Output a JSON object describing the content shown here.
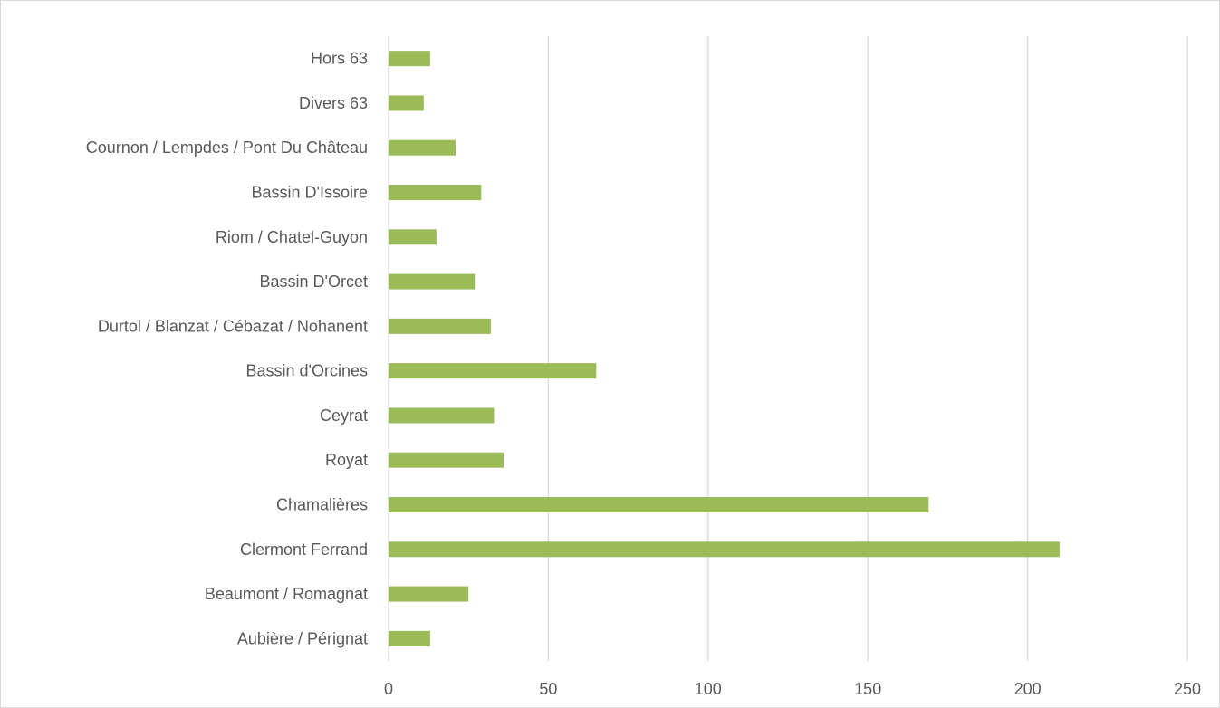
{
  "chart_data": {
    "type": "bar",
    "orientation": "horizontal",
    "title": "",
    "xlabel": "",
    "ylabel": "",
    "categories": [
      "Aubière / Pérignat",
      "Beaumont / Romagnat",
      "Clermont Ferrand",
      "Chamalières",
      "Royat",
      "Ceyrat",
      "Bassin d'Orcines",
      "Durtol / Blanzat / Cébazat / Nohanent",
      "Bassin D'Orcet",
      "Riom / Chatel-Guyon",
      "Bassin D'Issoire",
      "Cournon / Lempdes / Pont Du Château",
      "Divers 63",
      "Hors 63"
    ],
    "values": [
      13,
      25,
      210,
      169,
      36,
      33,
      65,
      32,
      27,
      15,
      29,
      21,
      11,
      13
    ],
    "xlim": [
      0,
      250
    ],
    "xticks": [
      "0",
      "50",
      "100",
      "150",
      "200",
      "250"
    ],
    "grid": "vertical",
    "legend": "none",
    "bar_color": "#9bbb59",
    "grid_color": "#d9d9d9"
  }
}
